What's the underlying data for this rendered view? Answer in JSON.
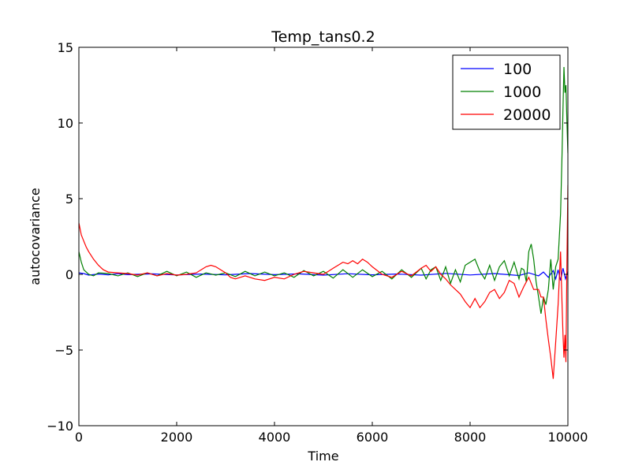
{
  "chart_data": {
    "type": "line",
    "title": "Temp_tans0.2",
    "xlabel": "Time",
    "ylabel": "autocovariance",
    "xlim": [
      0,
      10000
    ],
    "ylim": [
      -10,
      15
    ],
    "xticks": [
      0,
      2000,
      4000,
      6000,
      8000,
      10000
    ],
    "xtick_labels": [
      "0",
      "2000",
      "4000",
      "6000",
      "8000",
      "10000"
    ],
    "yticks": [
      -10,
      -5,
      0,
      5,
      10,
      15
    ],
    "ytick_labels": [
      "−10",
      "−5",
      "0",
      "5",
      "10",
      "15"
    ],
    "legend_position": "top-right",
    "grid": false,
    "series": [
      {
        "name": "100",
        "color": "#0000ff",
        "x": [
          0,
          100,
          200,
          400,
          600,
          800,
          1000,
          1500,
          2000,
          2500,
          3000,
          3500,
          4000,
          4500,
          5000,
          5500,
          6000,
          6500,
          7000,
          7500,
          8000,
          8500,
          9000,
          9200,
          9400,
          9500,
          9600,
          9700,
          9750,
          9800,
          9850,
          9900,
          9950,
          10000
        ],
        "y": [
          0.1,
          0.05,
          -0.05,
          0.02,
          -0.03,
          0.04,
          -0.02,
          0.03,
          -0.04,
          0.02,
          -0.03,
          0.05,
          -0.02,
          0.03,
          -0.05,
          0.04,
          -0.03,
          0.02,
          -0.05,
          0.06,
          -0.04,
          0.05,
          -0.08,
          0.1,
          -0.1,
          0.15,
          -0.2,
          0.25,
          -0.3,
          0.3,
          -0.4,
          0.4,
          -0.3,
          0.2
        ]
      },
      {
        "name": "1000",
        "color": "#008000",
        "x": [
          0,
          50,
          100,
          200,
          300,
          400,
          600,
          800,
          1000,
          1200,
          1400,
          1600,
          1800,
          2000,
          2200,
          2400,
          2600,
          2800,
          3000,
          3200,
          3400,
          3600,
          3800,
          4000,
          4200,
          4400,
          4600,
          4800,
          5000,
          5200,
          5400,
          5600,
          5800,
          6000,
          6200,
          6400,
          6600,
          6800,
          7000,
          7100,
          7200,
          7300,
          7400,
          7500,
          7600,
          7700,
          7800,
          7900,
          8000,
          8100,
          8200,
          8300,
          8400,
          8500,
          8600,
          8700,
          8800,
          8900,
          9000,
          9050,
          9100,
          9150,
          9200,
          9250,
          9300,
          9350,
          9400,
          9450,
          9500,
          9550,
          9600,
          9650,
          9700,
          9750,
          9800,
          9850,
          9880,
          9900,
          9920,
          9940,
          9960,
          9980,
          10000
        ],
        "y": [
          1.5,
          0.8,
          0.3,
          0.0,
          -0.1,
          0.1,
          0.05,
          -0.1,
          0.1,
          -0.15,
          0.1,
          -0.1,
          0.2,
          -0.1,
          0.15,
          -0.2,
          0.1,
          -0.05,
          0.1,
          -0.15,
          0.2,
          -0.1,
          0.15,
          -0.1,
          0.1,
          -0.2,
          0.25,
          -0.1,
          0.2,
          -0.25,
          0.3,
          -0.2,
          0.3,
          -0.15,
          0.2,
          -0.3,
          0.3,
          -0.2,
          0.4,
          -0.3,
          0.3,
          0.5,
          -0.4,
          0.5,
          -0.6,
          0.3,
          -0.5,
          0.6,
          0.8,
          1.0,
          0.2,
          -0.3,
          0.6,
          -0.4,
          0.5,
          0.9,
          -0.1,
          0.8,
          -0.3,
          0.4,
          0.3,
          -0.5,
          1.5,
          2.0,
          1.0,
          -0.5,
          -1.5,
          -2.6,
          -1.5,
          -2.0,
          -1.0,
          1.0,
          -1.0,
          0.5,
          1.0,
          4.0,
          8.0,
          11.0,
          13.7,
          12.0,
          12.5,
          10.0,
          8.0
        ]
      },
      {
        "name": "20000",
        "color": "#ff0000",
        "x": [
          0,
          50,
          100,
          150,
          200,
          300,
          400,
          500,
          600,
          800,
          1000,
          1200,
          1400,
          1600,
          1800,
          2000,
          2200,
          2400,
          2500,
          2600,
          2700,
          2800,
          2900,
          3000,
          3100,
          3200,
          3400,
          3600,
          3800,
          4000,
          4200,
          4400,
          4600,
          4800,
          5000,
          5100,
          5200,
          5300,
          5400,
          5500,
          5600,
          5700,
          5800,
          5900,
          6000,
          6200,
          6400,
          6600,
          6800,
          7000,
          7100,
          7200,
          7300,
          7400,
          7500,
          7600,
          7700,
          7800,
          7900,
          8000,
          8100,
          8200,
          8300,
          8400,
          8500,
          8600,
          8700,
          8800,
          8900,
          9000,
          9100,
          9200,
          9300,
          9400,
          9450,
          9500,
          9550,
          9600,
          9650,
          9700,
          9750,
          9800,
          9850,
          9880,
          9900,
          9920,
          9940,
          9960,
          9980,
          10000
        ],
        "y": [
          3.4,
          2.6,
          2.2,
          1.8,
          1.5,
          1.0,
          0.6,
          0.3,
          0.15,
          0.1,
          0.05,
          -0.05,
          0.1,
          -0.1,
          0.05,
          -0.05,
          0.0,
          0.1,
          0.3,
          0.5,
          0.6,
          0.5,
          0.3,
          0.1,
          -0.2,
          -0.3,
          -0.1,
          -0.3,
          -0.4,
          -0.2,
          -0.3,
          0.0,
          0.2,
          0.1,
          0.0,
          0.2,
          0.4,
          0.6,
          0.8,
          0.7,
          0.9,
          0.7,
          1.0,
          0.8,
          0.5,
          0.0,
          -0.2,
          0.2,
          -0.1,
          0.4,
          0.6,
          0.2,
          0.5,
          0.0,
          -0.3,
          -0.7,
          -1.0,
          -1.3,
          -1.8,
          -2.2,
          -1.6,
          -2.2,
          -1.8,
          -1.2,
          -1.0,
          -1.6,
          -1.2,
          -0.4,
          -0.6,
          -1.5,
          -0.8,
          -0.2,
          -1.0,
          -1.0,
          -1.5,
          -1.5,
          -3.0,
          -4.3,
          -5.5,
          -6.9,
          -4.5,
          -2.0,
          1.5,
          -2.0,
          -4.0,
          -5.5,
          -4.0,
          -5.8,
          1.0,
          5.9
        ]
      }
    ]
  }
}
